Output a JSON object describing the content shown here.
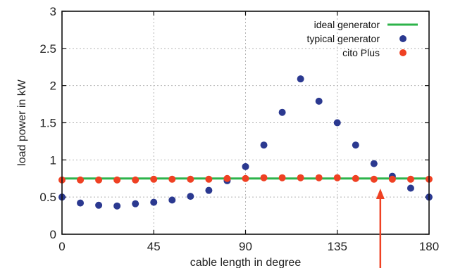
{
  "chart_data": {
    "type": "scatter",
    "title": "",
    "xlabel": "cable length in degree",
    "ylabel": "load power in kW",
    "xlim": [
      0,
      180
    ],
    "ylim": [
      0,
      3
    ],
    "x_ticks": [
      {
        "value": 0,
        "label": "0"
      },
      {
        "value": 45,
        "label": "45"
      },
      {
        "value": 90,
        "label": "90"
      },
      {
        "value": 135,
        "label": "135"
      },
      {
        "value": 180,
        "label": "180"
      }
    ],
    "y_ticks": [
      {
        "value": 0,
        "label": "0"
      },
      {
        "value": 0.5,
        "label": "0.5"
      },
      {
        "value": 1,
        "label": "1"
      },
      {
        "value": 1.5,
        "label": "1.5"
      },
      {
        "value": 2,
        "label": "2"
      },
      {
        "value": 2.5,
        "label": "2.5"
      },
      {
        "value": 3,
        "label": "3"
      }
    ],
    "grid": true,
    "legend_position": "top-right",
    "series": [
      {
        "name": "ideal generator",
        "style": "line",
        "color": "#2db34a",
        "x": [
          0,
          180
        ],
        "y": [
          0.75,
          0.75
        ]
      },
      {
        "name": "typical generator",
        "style": "points",
        "color": "#2b3990",
        "x": [
          0,
          9,
          18,
          27,
          36,
          45,
          54,
          63,
          72,
          81,
          90,
          99,
          108,
          117,
          126,
          135,
          144,
          153,
          162,
          171,
          180
        ],
        "y": [
          0.5,
          0.42,
          0.39,
          0.38,
          0.41,
          0.43,
          0.46,
          0.51,
          0.59,
          0.72,
          0.91,
          1.2,
          1.64,
          2.09,
          1.79,
          1.5,
          1.2,
          0.95,
          0.78,
          0.62,
          0.5
        ]
      },
      {
        "name": "cito Plus",
        "style": "points",
        "color": "#ef4123",
        "x": [
          0,
          9,
          18,
          27,
          36,
          45,
          54,
          63,
          72,
          81,
          90,
          99,
          108,
          117,
          126,
          135,
          144,
          153,
          162,
          171,
          180
        ],
        "y": [
          0.73,
          0.73,
          0.73,
          0.73,
          0.73,
          0.74,
          0.74,
          0.74,
          0.74,
          0.75,
          0.75,
          0.76,
          0.76,
          0.76,
          0.76,
          0.76,
          0.75,
          0.74,
          0.74,
          0.74,
          0.74
        ]
      }
    ],
    "annotations": [
      {
        "type": "arrow",
        "color": "#ef4123",
        "points_to_x": 153
      }
    ]
  }
}
